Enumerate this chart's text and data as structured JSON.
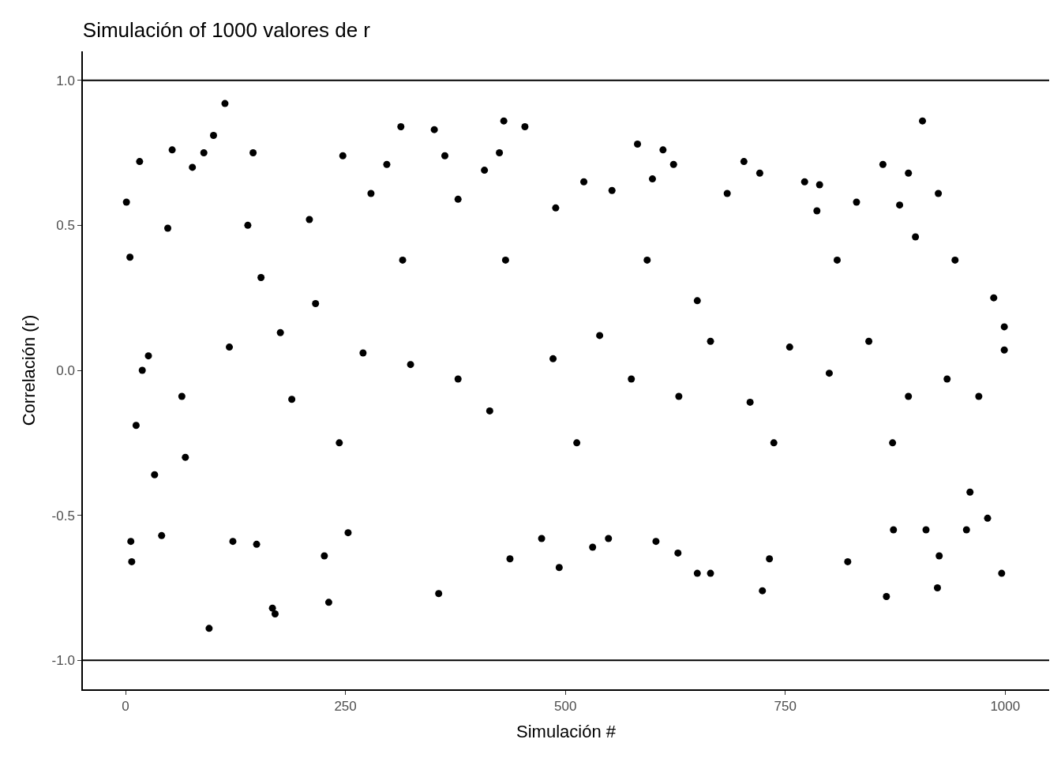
{
  "chart_data": {
    "type": "scatter",
    "title": "Simulación of 1000 valores de r",
    "xlabel": "Simulación #",
    "ylabel": "Correlación (r)",
    "x": [
      1,
      5,
      6,
      7,
      16,
      12,
      26,
      33,
      41,
      53,
      48,
      76,
      89,
      100,
      95,
      113,
      122,
      145,
      139,
      149,
      167,
      170,
      189,
      209,
      231,
      226,
      247,
      253,
      279,
      297,
      313,
      351,
      356,
      363,
      378,
      408,
      430,
      425,
      437,
      454,
      473,
      493,
      489,
      521,
      531,
      549,
      553,
      582,
      599,
      611,
      623,
      603,
      628,
      650,
      665,
      684,
      703,
      721,
      724,
      732,
      772,
      786,
      789,
      821,
      831,
      861,
      865,
      873,
      880,
      890,
      906,
      898,
      910,
      924,
      923,
      925,
      960,
      956,
      980,
      996,
      999,
      999,
      987,
      19,
      64,
      118,
      176,
      216,
      270,
      324,
      378,
      414,
      486,
      539,
      575,
      629,
      665,
      710,
      755,
      800,
      845,
      890,
      934,
      970,
      68,
      154,
      243,
      315,
      432,
      513,
      593,
      650,
      737,
      809,
      872,
      943
    ],
    "values": [
      0.58,
      0.39,
      -0.59,
      -0.66,
      0.72,
      -0.19,
      0.05,
      -0.36,
      -0.57,
      0.76,
      0.49,
      0.7,
      0.75,
      0.81,
      -0.89,
      0.92,
      -0.59,
      0.75,
      0.5,
      -0.6,
      -0.82,
      -0.84,
      -0.1,
      0.52,
      -0.8,
      -0.64,
      0.74,
      -0.56,
      0.61,
      0.71,
      0.84,
      0.83,
      -0.77,
      0.74,
      0.59,
      0.69,
      0.86,
      0.75,
      -0.65,
      0.84,
      -0.58,
      -0.68,
      0.56,
      0.65,
      -0.61,
      -0.58,
      0.62,
      0.78,
      0.66,
      0.76,
      0.71,
      -0.59,
      -0.63,
      -0.7,
      -0.7,
      0.61,
      0.72,
      0.68,
      -0.76,
      -0.65,
      0.65,
      0.55,
      0.64,
      -0.66,
      0.58,
      0.71,
      -0.78,
      -0.55,
      0.57,
      0.68,
      0.86,
      0.46,
      -0.55,
      0.61,
      -0.75,
      -0.64,
      -0.42,
      -0.55,
      -0.51,
      -0.7,
      0.07,
      0.15,
      0.25,
      0.0,
      -0.09,
      0.08,
      0.13,
      0.23,
      0.06,
      0.02,
      -0.03,
      -0.14,
      0.04,
      0.12,
      -0.03,
      -0.09,
      0.1,
      -0.11,
      0.08,
      -0.01,
      0.1,
      -0.09,
      -0.03,
      -0.09,
      -0.3,
      0.32,
      -0.25,
      0.38,
      0.38,
      -0.25,
      0.38,
      0.24,
      -0.25,
      0.38,
      -0.25,
      0.38
    ],
    "color": "#000000",
    "marker": "circle",
    "xlim": [
      -48.5,
      1050
    ],
    "xticks": [
      0,
      250,
      500,
      750,
      1000
    ],
    "ylim": [
      -1.1,
      1.1
    ],
    "yticks": [
      {
        "value": -1,
        "label": "-1.0"
      },
      {
        "value": -0.5,
        "label": "-0.5"
      },
      {
        "value": 0,
        "label": "0.0"
      },
      {
        "value": 0.5,
        "label": "0.5"
      },
      {
        "value": 1,
        "label": "1.0"
      }
    ],
    "ref_lines": [
      {
        "axis": "y",
        "value": 1,
        "color": "#000000"
      },
      {
        "axis": "y",
        "value": -1,
        "color": "#000000"
      }
    ]
  }
}
